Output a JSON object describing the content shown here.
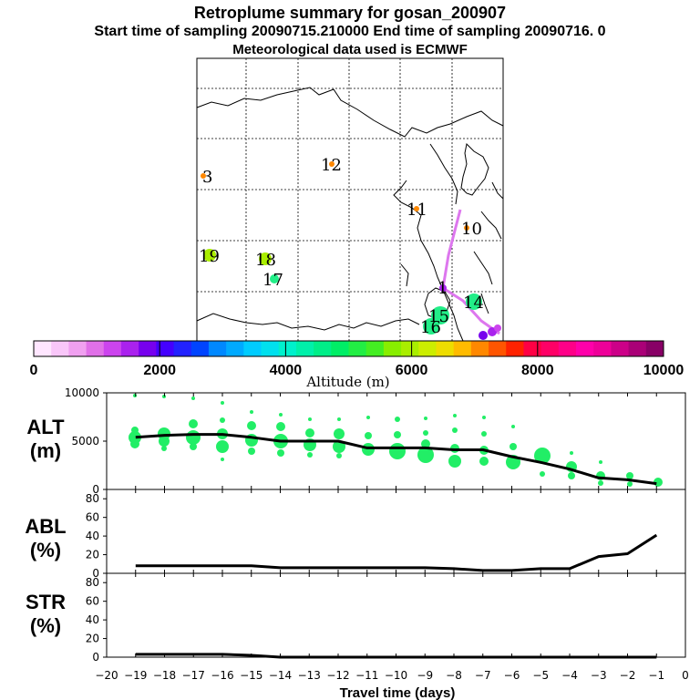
{
  "header": {
    "title": "Retroplume summary for gosan_200907",
    "sampling_line": "Start time of sampling 20090715.210000     End time of sampling 20090716.     0",
    "met_line": "Meteorological data used is ECMWF"
  },
  "colors": {
    "trajectory": "#dd77ee",
    "plume_dot": "#22ee66",
    "median_line": "#000000",
    "map_lines": "#000000"
  },
  "colorbar": {
    "label": "Altitude (m)",
    "ticks": [
      "0",
      "2000",
      "4000",
      "6000",
      "8000",
      "10000"
    ],
    "colors": [
      "#ffe6ff",
      "#f9c6f9",
      "#f0a0f0",
      "#e070e8",
      "#cc44ee",
      "#aa22ee",
      "#7700ee",
      "#4400ff",
      "#2222ff",
      "#0044ff",
      "#0088ff",
      "#00aaff",
      "#00ccff",
      "#00e0ee",
      "#00f0cc",
      "#00f0aa",
      "#00ee88",
      "#00ee66",
      "#22ee44",
      "#44ee22",
      "#88ee00",
      "#aaee00",
      "#ccee00",
      "#eedd00",
      "#ffbb00",
      "#ff8800",
      "#ff5500",
      "#ff2200",
      "#ff0044",
      "#ff0066",
      "#ff0088",
      "#ff00aa",
      "#ee0099",
      "#cc0088",
      "#aa0077",
      "#880066"
    ]
  },
  "map_labels": [
    {
      "text": "3",
      "color": "#ff8800"
    },
    {
      "text": "12",
      "color": "#ff8800"
    },
    {
      "text": "11",
      "color": "#ff8800"
    },
    {
      "text": "10",
      "color": "#ff8800"
    },
    {
      "text": "19",
      "color": "#aaee00"
    },
    {
      "text": "18",
      "color": "#aaee00"
    },
    {
      "text": "17",
      "color": "#22ee88"
    },
    {
      "text": "1",
      "color": "#aa22ee"
    },
    {
      "text": "14",
      "color": "#22ee88"
    },
    {
      "text": "15",
      "color": "#22ee88"
    },
    {
      "text": "16",
      "color": "#22ee88"
    }
  ],
  "panels": {
    "alt": {
      "label_line1": "ALT",
      "label_line2": "(m)"
    },
    "abl": {
      "label_line1": "ABL",
      "label_line2": "(%)"
    },
    "str": {
      "label_line1": "STR",
      "label_line2": "(%)"
    }
  },
  "chart_data": [
    {
      "type": "line",
      "title": "ALT (m)",
      "xlabel": "Travel time (days)",
      "ylabel": "ALT (m)",
      "xlim": [
        -20,
        0
      ],
      "ylim": [
        0,
        10000
      ],
      "yticks": [
        "10000",
        "5000",
        "0"
      ],
      "x": [
        -19,
        -18,
        -17,
        -16,
        -15,
        -14,
        -13,
        -12,
        -11,
        -10,
        -9,
        -8,
        -7,
        -6,
        -5,
        -4,
        -3,
        -2,
        -1
      ],
      "values": [
        5400,
        5600,
        5700,
        5700,
        5400,
        5000,
        5000,
        5000,
        4300,
        4300,
        4300,
        4100,
        4100,
        3400,
        2800,
        2100,
        1200,
        1000,
        600
      ]
    },
    {
      "type": "line",
      "title": "ABL (%)",
      "ylabel": "ABL (%)",
      "xlim": [
        -20,
        0
      ],
      "ylim": [
        0,
        90
      ],
      "yticks": [
        "80",
        "60",
        "40",
        "20",
        "0"
      ],
      "x": [
        -19,
        -18,
        -17,
        -16,
        -15,
        -14,
        -13,
        -12,
        -11,
        -10,
        -9,
        -8,
        -7,
        -6,
        -5,
        -4,
        -3,
        -2,
        -1
      ],
      "values": [
        8,
        8,
        8,
        8,
        8,
        6,
        6,
        6,
        6,
        6,
        6,
        5,
        3,
        3,
        5,
        5,
        18,
        21,
        41
      ]
    },
    {
      "type": "line",
      "title": "STR (%)",
      "xlabel": "Travel time (days)",
      "ylabel": "STR (%)",
      "xlim": [
        -20,
        0
      ],
      "ylim": [
        0,
        90
      ],
      "yticks": [
        "80",
        "60",
        "40",
        "20",
        "0"
      ],
      "xticks": [
        "−20",
        "−19",
        "−18",
        "−17",
        "−16",
        "−15",
        "−14",
        "−13",
        "−12",
        "−11",
        "−10",
        "−9",
        "−8",
        "−7",
        "−6",
        "−5",
        "−4",
        "−3",
        "−2",
        "−1",
        "0"
      ],
      "x": [
        -19,
        -18,
        -17,
        -16,
        -15,
        -14,
        -13,
        -12,
        -11,
        -10,
        -9,
        -8,
        -7,
        -6,
        -5,
        -4,
        -3,
        -2,
        -1
      ],
      "values": [
        3,
        3,
        3,
        3,
        2,
        0,
        0,
        0,
        0,
        0,
        0,
        0,
        0,
        0,
        0,
        0,
        0,
        0,
        0
      ]
    }
  ]
}
